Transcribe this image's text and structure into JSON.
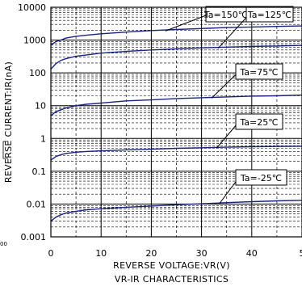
{
  "chart_data": {
    "type": "line",
    "title": "VR-IR CHARACTERISTICS",
    "xlabel": "REVERSE VOLTAGE:VR(V)",
    "ylabel": "REVERSE CURRENT:IR(nA)",
    "xlim": [
      0,
      50
    ],
    "ylim": [
      0.001,
      10000
    ],
    "yscale": "log",
    "x_ticks": [
      "0",
      "10",
      "20",
      "30",
      "40",
      "5"
    ],
    "y_ticks": [
      "10000",
      "1000",
      "100",
      "10",
      "1",
      "0.1",
      "0.01",
      "0.001"
    ],
    "grid": true,
    "line_color": "#1a237e",
    "left_edge_fragment": "00",
    "series": [
      {
        "name": "Ta=150℃",
        "x": [
          0,
          1,
          2,
          3,
          5,
          7,
          10,
          15,
          20,
          25,
          30,
          35,
          40,
          45,
          50
        ],
        "y": [
          700,
          900,
          1000,
          1150,
          1300,
          1400,
          1550,
          1750,
          1950,
          2100,
          2250,
          2400,
          2500,
          2600,
          2700
        ]
      },
      {
        "name": "Ta=125℃",
        "x": [
          0,
          1,
          2,
          3,
          5,
          7,
          10,
          15,
          20,
          25,
          30,
          35,
          40,
          45,
          50
        ],
        "y": [
          130,
          190,
          240,
          270,
          320,
          350,
          400,
          450,
          500,
          540,
          580,
          610,
          640,
          660,
          690
        ]
      },
      {
        "name": "Ta=75℃",
        "x": [
          0,
          1,
          2,
          3,
          5,
          7,
          10,
          15,
          20,
          25,
          30,
          35,
          40,
          45,
          50
        ],
        "y": [
          5,
          6.5,
          7.5,
          8.5,
          10,
          11,
          12,
          14,
          15,
          16.5,
          17.5,
          18.5,
          19.5,
          20,
          21
        ]
      },
      {
        "name": "Ta=25℃",
        "x": [
          0,
          1,
          2,
          3,
          5,
          7,
          10,
          15,
          20,
          25,
          30,
          35,
          40,
          45,
          50
        ],
        "y": [
          0.22,
          0.28,
          0.32,
          0.35,
          0.38,
          0.4,
          0.42,
          0.45,
          0.47,
          0.5,
          0.52,
          0.54,
          0.56,
          0.57,
          0.58
        ]
      },
      {
        "name": "Ta=-25℃",
        "x": [
          0,
          1,
          2,
          3,
          5,
          7,
          10,
          15,
          20,
          25,
          30,
          35,
          40,
          45,
          50
        ],
        "y": [
          0.003,
          0.004,
          0.0047,
          0.0053,
          0.006,
          0.0066,
          0.0072,
          0.008,
          0.0087,
          0.0095,
          0.0102,
          0.011,
          0.0118,
          0.0125,
          0.013
        ]
      }
    ]
  }
}
